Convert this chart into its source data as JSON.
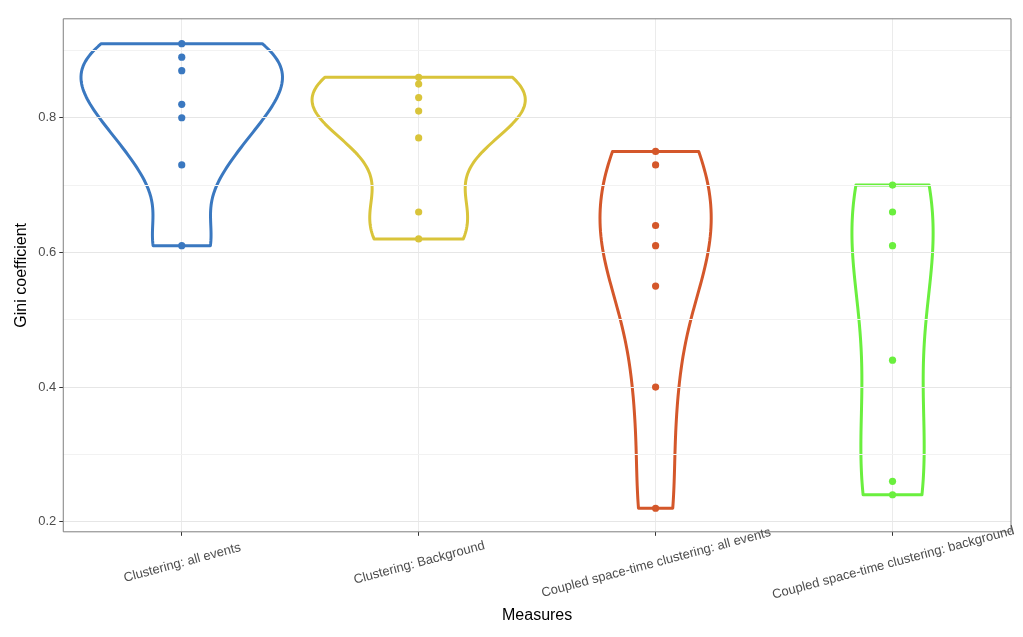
{
  "chart_data": {
    "type": "scatter",
    "xlabel": "Measures",
    "ylabel": "Gini coefficient",
    "categories": [
      "Clustering: all events",
      "Clustering: Background",
      "Coupled space-time clustering: all events",
      "Coupled space-time clustering: background"
    ],
    "series": [
      {
        "color": "#3a78c0",
        "x": [
          "Clustering: all events",
          "Clustering: all events",
          "Clustering: all events",
          "Clustering: all events",
          "Clustering: all events",
          "Clustering: all events",
          "Clustering: all events"
        ],
        "values": [
          0.91,
          0.89,
          0.87,
          0.82,
          0.8,
          0.73,
          0.61
        ]
      },
      {
        "color": "#d9c43a",
        "x": [
          "Clustering: Background",
          "Clustering: Background",
          "Clustering: Background",
          "Clustering: Background",
          "Clustering: Background",
          "Clustering: Background",
          "Clustering: Background"
        ],
        "values": [
          0.86,
          0.85,
          0.83,
          0.81,
          0.77,
          0.66,
          0.62
        ]
      },
      {
        "color": "#d4572a",
        "x": [
          "Coupled space-time clustering: all events",
          "Coupled space-time clustering: all events",
          "Coupled space-time clustering: all events",
          "Coupled space-time clustering: all events",
          "Coupled space-time clustering: all events",
          "Coupled space-time clustering: all events",
          "Coupled space-time clustering: all events"
        ],
        "values": [
          0.75,
          0.73,
          0.64,
          0.61,
          0.55,
          0.4,
          0.22
        ]
      },
      {
        "color": "#6aef3e",
        "x": [
          "Coupled space-time clustering: background",
          "Coupled space-time clustering: background",
          "Coupled space-time clustering: background",
          "Coupled space-time clustering: background",
          "Coupled space-time clustering: background",
          "Coupled space-time clustering: background"
        ],
        "values": [
          0.7,
          0.66,
          0.61,
          0.44,
          0.26,
          0.24
        ]
      }
    ],
    "ylim": [
      0.185,
      0.947
    ],
    "yticks": [
      0.2,
      {
        "value": 0.3,
        "label": null
      },
      0.4,
      {
        "value": 0.5,
        "label": null
      },
      0.6,
      {
        "value": 0.7,
        "label": null
      },
      0.8,
      {
        "value": 0.9,
        "label": null
      }
    ],
    "grid": true,
    "marker": "circle"
  }
}
